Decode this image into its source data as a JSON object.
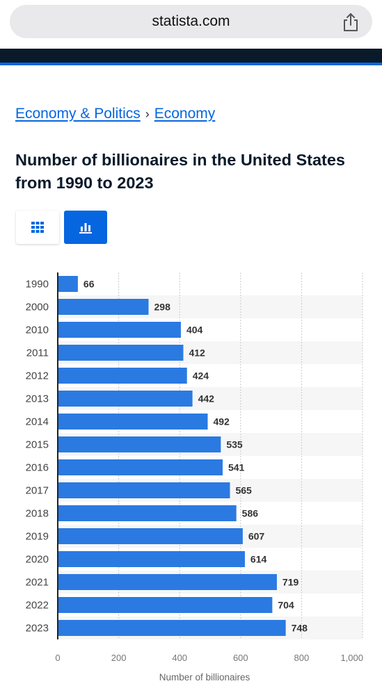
{
  "browser": {
    "url": "statista.com"
  },
  "breadcrumb": {
    "items": [
      "Economy & Politics",
      "Economy"
    ],
    "separator": "›"
  },
  "page": {
    "title": "Number of billionaires in the United States from 1990 to 2023"
  },
  "colors": {
    "accent": "#0666e0",
    "bar": "#2a7ae2",
    "nav": "#0b1a2a"
  },
  "view_toggle": {
    "options": [
      "table",
      "chart"
    ],
    "selected": "chart"
  },
  "chart_data": {
    "type": "bar",
    "orientation": "horizontal",
    "categories": [
      "1990",
      "2000",
      "2010",
      "2011",
      "2012",
      "2013",
      "2014",
      "2015",
      "2016",
      "2017",
      "2018",
      "2019",
      "2020",
      "2021",
      "2022",
      "2023"
    ],
    "values": [
      66,
      298,
      404,
      412,
      424,
      442,
      492,
      535,
      541,
      565,
      586,
      607,
      614,
      719,
      704,
      748
    ],
    "xlabel": "Number of billionaires",
    "xlim": [
      0,
      1000
    ],
    "xticks": [
      "0",
      "200",
      "400",
      "600",
      "800",
      "1,000"
    ],
    "grid": true
  }
}
